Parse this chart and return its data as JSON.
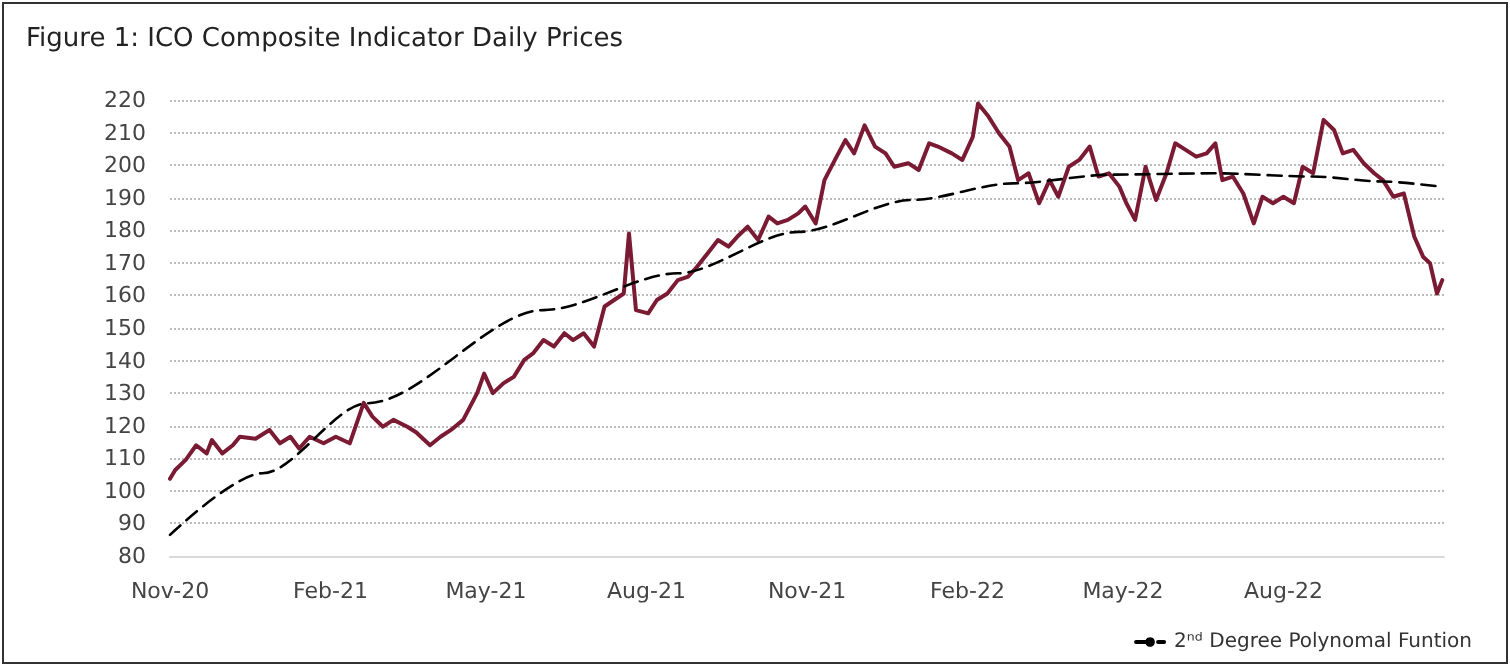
{
  "chart_data": {
    "type": "line",
    "title": "Figure 1: ICO Composite Indicator Daily Prices",
    "xlim": [
      "2020-11-01",
      "2022-11-01"
    ],
    "xticks": [
      {
        "value": "2020-11-01",
        "label": "Nov-20"
      },
      {
        "value": "2021-02-01",
        "label": "Feb-21"
      },
      {
        "value": "2021-05-01",
        "label": "May-21"
      },
      {
        "value": "2021-08-01",
        "label": "Aug-21"
      },
      {
        "value": "2021-11-01",
        "label": "Nov-21"
      },
      {
        "value": "2022-02-01",
        "label": "Feb-22"
      },
      {
        "value": "2022-05-01",
        "label": "May-22"
      },
      {
        "value": "2022-08-01",
        "label": "Aug-22"
      }
    ],
    "ylim": [
      80,
      220
    ],
    "yticks": [
      80,
      90,
      100,
      110,
      120,
      130,
      140,
      150,
      160,
      170,
      180,
      190,
      200,
      210,
      220
    ],
    "grid": "y",
    "legend": "bottom right",
    "marker": "none",
    "series": [
      {
        "color": "#7b1a33",
        "line_style": "solid",
        "x": [
          "2020-11-01",
          "2020-11-04",
          "2020-11-10",
          "2020-11-16",
          "2020-11-22",
          "2020-11-25",
          "2020-12-01",
          "2020-12-07",
          "2020-12-11",
          "2020-12-20",
          "2020-12-28",
          "2021-01-03",
          "2021-01-09",
          "2021-01-14",
          "2021-01-20",
          "2021-01-28",
          "2021-02-04",
          "2021-02-12",
          "2021-02-20",
          "2021-02-25",
          "2021-03-03",
          "2021-03-09",
          "2021-03-17",
          "2021-03-22",
          "2021-03-30",
          "2021-04-05",
          "2021-04-11",
          "2021-04-18",
          "2021-04-26",
          "2021-04-30",
          "2021-05-05",
          "2021-05-11",
          "2021-05-17",
          "2021-05-23",
          "2021-05-28",
          "2021-06-03",
          "2021-06-09",
          "2021-06-15",
          "2021-06-20",
          "2021-06-26",
          "2021-07-02",
          "2021-07-08",
          "2021-07-19",
          "2021-07-22",
          "2021-07-26",
          "2021-08-02",
          "2021-08-07",
          "2021-08-13",
          "2021-08-19",
          "2021-08-25",
          "2021-08-30",
          "2021-09-05",
          "2021-09-11",
          "2021-09-17",
          "2021-09-22",
          "2021-09-28",
          "2021-10-04",
          "2021-10-10",
          "2021-10-15",
          "2021-10-21",
          "2021-10-27",
          "2021-10-31",
          "2021-11-06",
          "2021-11-11",
          "2021-11-17",
          "2021-11-23",
          "2021-11-28",
          "2021-12-04",
          "2021-12-10",
          "2021-12-16",
          "2021-12-21",
          "2021-12-29",
          "2022-01-04",
          "2022-01-10",
          "2022-01-15",
          "2022-01-23",
          "2022-01-29",
          "2022-02-04",
          "2022-02-07",
          "2022-02-13",
          "2022-02-19",
          "2022-02-25",
          "2022-03-02",
          "2022-03-08",
          "2022-03-14",
          "2022-03-20",
          "2022-03-25",
          "2022-03-31",
          "2022-04-06",
          "2022-04-12",
          "2022-04-17",
          "2022-04-23",
          "2022-04-29",
          "2022-05-03",
          "2022-05-08",
          "2022-05-14",
          "2022-05-20",
          "2022-05-26",
          "2022-05-31",
          "2022-06-06",
          "2022-06-12",
          "2022-06-18",
          "2022-06-23",
          "2022-06-27",
          "2022-07-03",
          "2022-07-09",
          "2022-07-15",
          "2022-07-20",
          "2022-07-26",
          "2022-08-01",
          "2022-08-07",
          "2022-08-12",
          "2022-08-18",
          "2022-08-24",
          "2022-08-30",
          "2022-09-04",
          "2022-09-10",
          "2022-09-16",
          "2022-09-22",
          "2022-09-27",
          "2022-10-03",
          "2022-10-09",
          "2022-10-15",
          "2022-10-20",
          "2022-10-24",
          "2022-10-28",
          "2022-10-31"
        ],
        "values": [
          103.7,
          106.4,
          109.5,
          114,
          111.5,
          115.6,
          111.5,
          114,
          116.6,
          116,
          118.7,
          114.6,
          116.6,
          113,
          116.6,
          114.6,
          116.6,
          114.6,
          127,
          122.8,
          119.7,
          121.8,
          119.7,
          118,
          114,
          116.6,
          118.7,
          121.8,
          130,
          136,
          130,
          133,
          135,
          140.2,
          142.2,
          146.3,
          144.3,
          148.4,
          146.3,
          148.4,
          144.3,
          156.6,
          160.6,
          179,
          155.5,
          154.5,
          158.6,
          160.6,
          164.7,
          165.8,
          168.8,
          172.9,
          177,
          175,
          178,
          181.1,
          177,
          184.2,
          182.1,
          183.2,
          185.2,
          187.3,
          182.1,
          195.4,
          201.6,
          207.7,
          203.6,
          212.2,
          205.7,
          203.6,
          199.5,
          200.6,
          198.5,
          206.7,
          205.7,
          203.6,
          201.6,
          208.7,
          218.9,
          214.9,
          209.8,
          205.7,
          195.4,
          197.5,
          188.3,
          195.4,
          190.3,
          199.5,
          201.6,
          205.7,
          196.5,
          197.5,
          193.4,
          188.3,
          183.2,
          199.5,
          189.3,
          197.5,
          206.7,
          204.7,
          202.6,
          203.6,
          206.7,
          195.4,
          196.5,
          191.3,
          182.1,
          190.3,
          188.3,
          190.3,
          188.3,
          199.5,
          197.5,
          213.9,
          210.8,
          203.6,
          204.7,
          200.6,
          197.5,
          195.4,
          190.3,
          191.3,
          178,
          171.9,
          169.9,
          160.6,
          164.7
        ]
      },
      {
        "name": "2ⁿᵈ Degree Polynomal Funtion",
        "color": "#000000",
        "line_style": "dashed",
        "x": [
          "2020-11-01",
          "2020-12-24",
          "2021-02-22",
          "2021-06-03",
          "2021-08-19",
          "2021-10-27",
          "2021-12-31",
          "2022-02-27",
          "2022-04-25",
          "2022-06-22",
          "2022-08-18",
          "2022-09-26",
          "2022-10-30"
        ],
        "values": [
          86.5,
          105.4,
          126.9,
          155.5,
          166.8,
          179.5,
          189.3,
          194.4,
          197.1,
          197.5,
          196.5,
          195,
          193.4
        ]
      }
    ]
  }
}
